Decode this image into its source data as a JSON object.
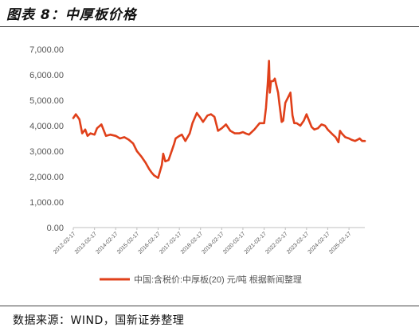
{
  "figure": {
    "title": "图表 8：中厚板价格",
    "source": "数据来源：WIND，国新证券整理"
  },
  "colors": {
    "series": "#e0401a",
    "axis_text": "#555555",
    "rule": "#444444"
  },
  "chart_data": {
    "type": "line",
    "title": "",
    "xlabel": "",
    "ylabel": "",
    "ylim": [
      0,
      7000
    ],
    "yticks": [
      0,
      1000,
      2000,
      3000,
      4000,
      5000,
      6000,
      7000
    ],
    "ytick_labels": [
      "0.00",
      "1,000.00",
      "2,000.00",
      "3,000.00",
      "4,000.00",
      "5,000.00",
      "6,000.00",
      "7,000.00"
    ],
    "xlim": [
      "2012-02-17",
      "2025-11-17"
    ],
    "xticks": [
      "2012-02-17",
      "2013-02-17",
      "2014-02-17",
      "2015-02-17",
      "2016-02-17",
      "2017-02-17",
      "2018-02-17",
      "2019-02-17",
      "2020-02-17",
      "2021-02-17",
      "2022-02-17",
      "2023-02-17",
      "2024-02-17",
      "2025-02-17"
    ],
    "grid": false,
    "legend_position": "bottom",
    "series": [
      {
        "name": "中国:含税价:中厚板(20) 元/吨 根据新闻整理",
        "x": [
          "2012-02-17",
          "2012-04-01",
          "2012-06-01",
          "2012-07-20",
          "2012-09-10",
          "2012-10-20",
          "2012-12-10",
          "2013-02-17",
          "2013-04-01",
          "2013-06-15",
          "2013-09-01",
          "2013-11-15",
          "2014-02-17",
          "2014-05-01",
          "2014-07-15",
          "2014-10-01",
          "2014-12-15",
          "2015-02-17",
          "2015-05-01",
          "2015-07-15",
          "2015-09-15",
          "2015-11-01",
          "2015-12-10",
          "2016-02-17",
          "2016-03-20",
          "2016-04-20",
          "2016-05-15",
          "2016-06-20",
          "2016-08-15",
          "2016-10-15",
          "2016-11-20",
          "2016-12-15",
          "2017-02-17",
          "2017-04-01",
          "2017-06-01",
          "2017-08-15",
          "2017-10-01",
          "2017-12-15",
          "2018-02-17",
          "2018-04-01",
          "2018-06-15",
          "2018-08-15",
          "2018-10-15",
          "2018-12-15",
          "2019-02-17",
          "2019-05-01",
          "2019-07-15",
          "2019-10-01",
          "2019-12-15",
          "2020-02-17",
          "2020-04-01",
          "2020-06-01",
          "2020-09-01",
          "2020-12-01",
          "2021-02-17",
          "2021-03-20",
          "2021-04-20",
          "2021-05-12",
          "2021-05-25",
          "2021-06-15",
          "2021-07-20",
          "2021-08-20",
          "2021-10-15",
          "2021-11-10",
          "2021-12-15",
          "2022-01-10",
          "2022-02-17",
          "2022-04-01",
          "2022-05-15",
          "2022-06-20",
          "2022-07-20",
          "2022-09-01",
          "2022-11-01",
          "2023-01-01",
          "2023-02-17",
          "2023-04-01",
          "2023-05-15",
          "2023-07-01",
          "2023-09-01",
          "2023-11-01",
          "2024-01-01",
          "2024-02-17",
          "2024-04-01",
          "2024-05-15",
          "2024-07-01",
          "2024-08-20",
          "2024-09-15",
          "2024-10-15",
          "2024-12-15",
          "2025-02-17",
          "2025-04-01",
          "2025-06-01",
          "2025-07-15",
          "2025-08-20",
          "2025-10-01",
          "2025-11-17"
        ],
        "values": [
          4300,
          4450,
          4250,
          3700,
          3850,
          3600,
          3700,
          3650,
          3900,
          4050,
          3600,
          3650,
          3600,
          3500,
          3550,
          3450,
          3300,
          3000,
          2800,
          2550,
          2300,
          2150,
          2050,
          1950,
          2200,
          2450,
          2900,
          2600,
          2650,
          3050,
          3300,
          3500,
          3600,
          3650,
          3400,
          3700,
          4100,
          4500,
          4300,
          4150,
          4400,
          4450,
          4350,
          3800,
          3900,
          4050,
          3800,
          3700,
          3700,
          3750,
          3700,
          3650,
          3850,
          4100,
          4100,
          4700,
          5650,
          6550,
          5300,
          5750,
          5750,
          5850,
          5300,
          4800,
          4150,
          4200,
          4900,
          5100,
          5300,
          4400,
          4100,
          4100,
          4000,
          4200,
          4450,
          4200,
          3950,
          3850,
          3900,
          4050,
          4000,
          3850,
          3750,
          3650,
          3550,
          3350,
          3800,
          3700,
          3550,
          3500,
          3450,
          3400,
          3450,
          3500,
          3400,
          3400
        ]
      }
    ]
  }
}
